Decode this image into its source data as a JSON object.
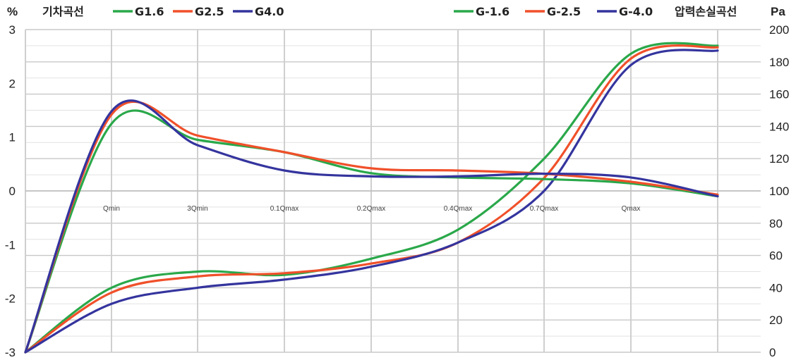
{
  "chart_data": {
    "type": "line",
    "left_axis": {
      "unit": "%",
      "ylim": [
        -3,
        3
      ],
      "ticks": [
        "3",
        "2",
        "1",
        "0",
        "-1",
        "-2",
        "-3"
      ]
    },
    "right_axis": {
      "unit": "Pa",
      "ylim": [
        0,
        200
      ],
      "ticks": [
        "200",
        "180",
        "160",
        "140",
        "120",
        "100",
        "80",
        "60",
        "40",
        "20",
        "0"
      ]
    },
    "x_categories": [
      "Qmin",
      "3Qmin",
      "0.1Qmax",
      "0.2Qmax",
      "0.4Qmax",
      "0.7Qmax",
      "Qmax"
    ],
    "legend_left_title": "기차곡선",
    "legend_right_title": "압력손실곡선",
    "grid": true,
    "error_curves": [
      {
        "name": "G1.6",
        "color": "#2aa84a",
        "values": [
          -3.0,
          1.25,
          0.95,
          0.72,
          0.33,
          0.25,
          0.22,
          0.14,
          -0.1
        ]
      },
      {
        "name": "G2.5",
        "color": "#f0502a",
        "values": [
          -3.0,
          1.42,
          1.03,
          0.72,
          0.42,
          0.38,
          0.32,
          0.17,
          -0.07
        ]
      },
      {
        "name": "G4.0",
        "color": "#34349e",
        "values": [
          -3.0,
          1.48,
          0.85,
          0.38,
          0.27,
          0.27,
          0.32,
          0.25,
          -0.1
        ]
      }
    ],
    "pressure_curves": [
      {
        "name": "G-1.6",
        "color": "#2aa84a",
        "values": [
          0,
          40,
          50,
          48,
          58,
          76,
          120,
          185,
          190
        ]
      },
      {
        "name": "G-2.5",
        "color": "#f0502a",
        "values": [
          0,
          37,
          47,
          49,
          55,
          68,
          108,
          182,
          189
        ]
      },
      {
        "name": "G-4.0",
        "color": "#34349e",
        "values": [
          0,
          30,
          40,
          45,
          53,
          68,
          100,
          178,
          187
        ]
      }
    ]
  }
}
